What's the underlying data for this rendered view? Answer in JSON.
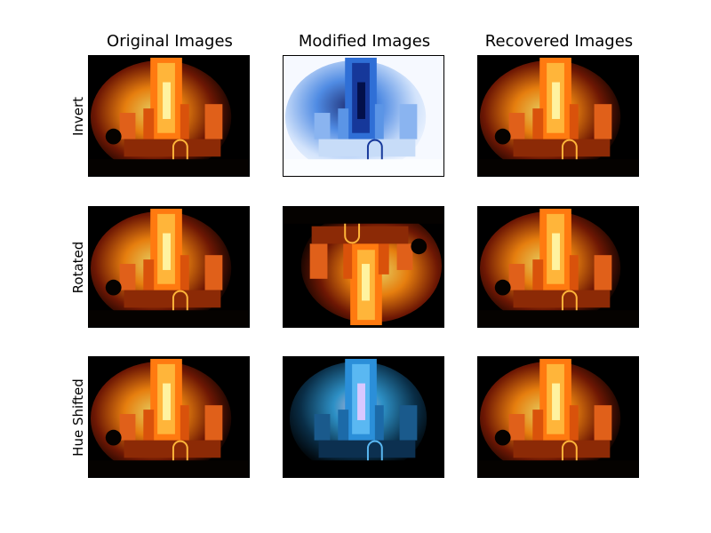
{
  "columns": [
    "Original Images",
    "Modified Images",
    "Recovered Images"
  ],
  "rows": [
    "Invert",
    "Rotated",
    "Hue Shifted"
  ],
  "images": {
    "original": "burning-cathedral-photo",
    "modified_invert": "inverted-burning-cathedral-photo",
    "modified_rotated": "rotated-180-burning-cathedral-photo",
    "modified_hue": "hue-shifted-burning-cathedral-photo",
    "recovered": "recovered-burning-cathedral-photo"
  },
  "colors": {
    "fire_core": "#fff6a0",
    "fire_mid": "#ff9a1a",
    "fire_dark": "#b0300a",
    "invert_bg": "#f4f8ff",
    "invert_mid": "#3d7fe0",
    "invert_dark": "#0a1f6e",
    "hue_core": "#d9c8ff",
    "hue_mid": "#2fa8e6",
    "hue_dark": "#0d4060"
  }
}
